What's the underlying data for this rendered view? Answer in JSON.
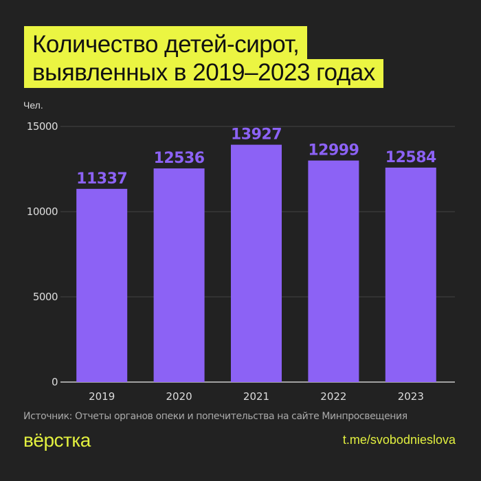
{
  "title_line1": "Количество детей-сирот,",
  "title_line2": "выявленных в 2019–2023 годах",
  "colors": {
    "background": "#222222",
    "bar": "#8c62f5",
    "title_bg": "#ebf542",
    "accent": "#e2f03f"
  },
  "chart_data": {
    "type": "bar",
    "title": "Количество детей-сирот, выявленных в 2019–2023 годах",
    "ylabel": "Чел.",
    "categories": [
      "2019",
      "2020",
      "2021",
      "2022",
      "2023"
    ],
    "values": [
      11337,
      12536,
      13927,
      12999,
      12584
    ],
    "ylim": [
      0,
      15000
    ],
    "yticks": [
      0,
      5000,
      10000,
      15000
    ],
    "grid": true
  },
  "source": "Источник: Отчеты органов опеки и попечительства на сайте Минпросвещения",
  "logo": "вёрстка",
  "link": "t.me/svobodnieslova"
}
